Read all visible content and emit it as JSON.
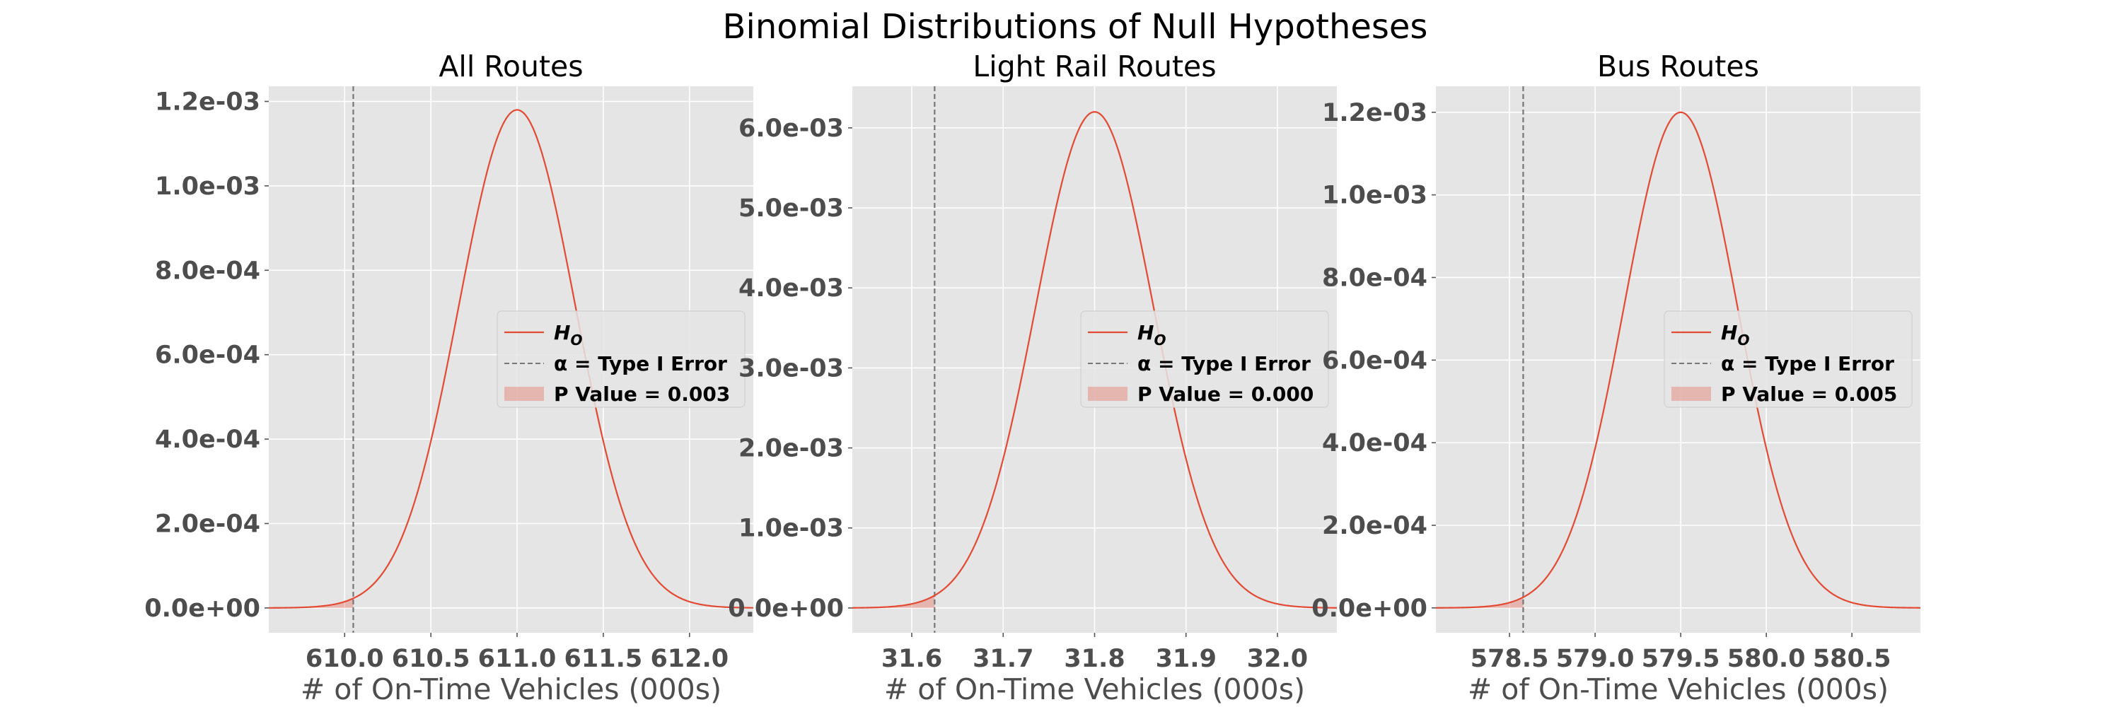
{
  "figure": {
    "suptitle": "Binomial Distributions of Null Hypotheses"
  },
  "chart_data": [
    {
      "type": "line",
      "title": "All Routes",
      "xlabel": "# of On-Time Vehicles (000s)",
      "ylabel": "",
      "grid": true,
      "legend_position": "center-right",
      "mean": 611.0,
      "sd": 0.338,
      "xlim": [
        609.56,
        612.37
      ],
      "ylim": [
        -5.88e-05,
        0.001236
      ],
      "xticks": [
        610.0,
        610.5,
        611.0,
        611.5,
        612.0
      ],
      "xtick_labels": [
        "610.0",
        "610.5",
        "611.0",
        "611.5",
        "612.0"
      ],
      "yticks": [
        0,
        0.0002,
        0.0004,
        0.0006,
        0.0008,
        0.001,
        0.0012
      ],
      "ytick_labels": [
        "0.0e+00",
        "2.0e-04",
        "4.0e-04",
        "6.0e-04",
        "8.0e-04",
        "1.0e-03",
        "1.2e-03"
      ],
      "peak": 0.00118,
      "alpha_x": 610.05,
      "p_value_region": [
        609.56,
        610.05
      ],
      "series": [
        {
          "name": "H",
          "subscript": "O",
          "kind": "line",
          "color": "#e24a33"
        },
        {
          "name": "α = Type I Error",
          "kind": "dashed-vline",
          "color": "#777777"
        },
        {
          "name": "P Value = 0.003",
          "kind": "shaded-area",
          "color": "#e24a33"
        }
      ]
    },
    {
      "type": "line",
      "title": "Light Rail Routes",
      "xlabel": "# of On-Time Vehicles (000s)",
      "ylabel": "",
      "grid": true,
      "legend_position": "center-right",
      "mean": 31.8,
      "sd": 0.0645,
      "xlim": [
        31.535,
        32.065
      ],
      "ylim": [
        -0.00031,
        0.00652
      ],
      "xticks": [
        31.6,
        31.7,
        31.8,
        31.9,
        32.0
      ],
      "xtick_labels": [
        "31.6",
        "31.7",
        "31.8",
        "31.9",
        "32.0"
      ],
      "yticks": [
        0,
        0.001,
        0.002,
        0.003,
        0.004,
        0.005,
        0.006
      ],
      "ytick_labels": [
        "0.0e+00",
        "1.0e-03",
        "2.0e-03",
        "3.0e-03",
        "4.0e-03",
        "5.0e-03",
        "6.0e-03"
      ],
      "peak": 0.0062,
      "alpha_x": 31.625,
      "p_value_region": [
        31.535,
        31.625
      ],
      "series": [
        {
          "name": "H",
          "subscript": "O",
          "kind": "line",
          "color": "#e24a33"
        },
        {
          "name": "α = Type I Error",
          "kind": "dashed-vline",
          "color": "#777777"
        },
        {
          "name": "P Value = 0.000",
          "kind": "shaded-area",
          "color": "#e24a33"
        }
      ]
    },
    {
      "type": "line",
      "title": "Bus Routes",
      "xlabel": "# of On-Time Vehicles (000s)",
      "ylabel": "",
      "grid": true,
      "legend_position": "center-right",
      "mean": 579.5,
      "sd": 0.332,
      "xlim": [
        578.07,
        580.9
      ],
      "ylim": [
        -6.02e-05,
        0.001263
      ],
      "xticks": [
        578.5,
        579.0,
        579.5,
        580.0,
        580.5
      ],
      "xtick_labels": [
        "578.5",
        "579.0",
        "579.5",
        "580.0",
        "580.5"
      ],
      "yticks": [
        0,
        0.0002,
        0.0004,
        0.0006,
        0.0008,
        0.001,
        0.0012
      ],
      "ytick_labels": [
        "0.0e+00",
        "2.0e-04",
        "4.0e-04",
        "6.0e-04",
        "8.0e-04",
        "1.0e-03",
        "1.2e-03"
      ],
      "peak": 0.0012,
      "alpha_x": 578.58,
      "p_value_region": [
        578.07,
        578.58
      ],
      "series": [
        {
          "name": "H",
          "subscript": "O",
          "kind": "line",
          "color": "#e24a33"
        },
        {
          "name": "α = Type I Error",
          "kind": "dashed-vline",
          "color": "#777777"
        },
        {
          "name": "P Value = 0.005",
          "kind": "shaded-area",
          "color": "#e24a33"
        }
      ]
    }
  ]
}
